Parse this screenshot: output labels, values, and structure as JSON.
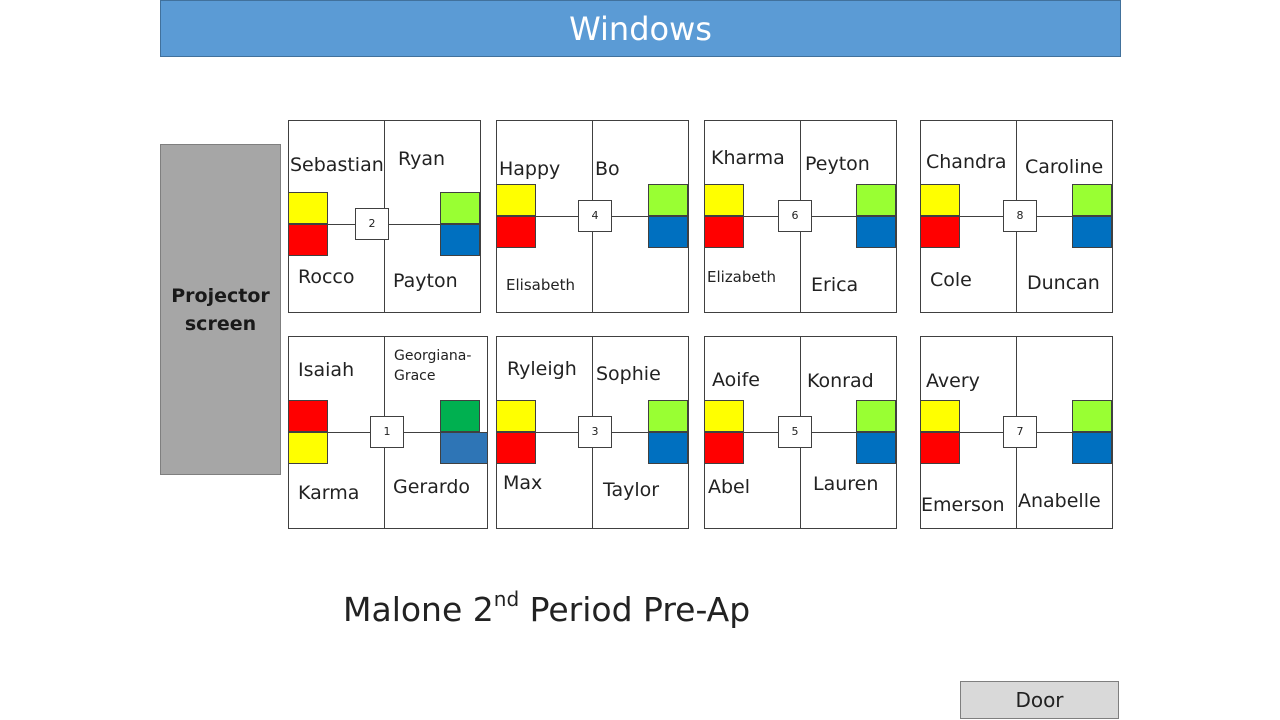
{
  "header": {
    "windows_label": "Windows"
  },
  "projector": {
    "line1": "Projector",
    "line2": "screen"
  },
  "title": {
    "prefix": "Malone 2",
    "superscript": "nd",
    "suffix": " Period Pre-Ap"
  },
  "door": {
    "label": "Door"
  },
  "colors": {
    "windows": "#5b9bd5",
    "projector": "#a6a6a6",
    "yellow": "#ffff00",
    "red": "#ff0000",
    "lime": "#99ff33",
    "blue": "#0070c0",
    "green": "#00b050",
    "steel_blue": "#2e75b6"
  },
  "tables": [
    {
      "number": "2",
      "names": [
        "Sebastian",
        "Ryan",
        "Rocco",
        "Payton"
      ],
      "squares": [
        "yellow",
        "red",
        "lime",
        "blue"
      ]
    },
    {
      "number": "4",
      "names": [
        "Happy",
        "Bo",
        "Elisabeth",
        ""
      ],
      "squares": [
        "yellow",
        "red",
        "lime",
        "blue"
      ]
    },
    {
      "number": "6",
      "names": [
        "Kharma",
        "Peyton",
        "Elizabeth",
        "Erica"
      ],
      "squares": [
        "yellow",
        "red",
        "lime",
        "blue"
      ]
    },
    {
      "number": "8",
      "names": [
        "Chandra",
        "Caroline",
        "Cole",
        "Duncan"
      ],
      "squares": [
        "yellow",
        "red",
        "lime",
        "blue"
      ]
    },
    {
      "number": "1",
      "names": [
        "Isaiah",
        "Georgiana-Grace",
        "Karma",
        "Gerardo"
      ],
      "squares": [
        "red",
        "yellow",
        "green",
        "steel_blue"
      ]
    },
    {
      "number": "3",
      "names": [
        "Ryleigh",
        "Sophie",
        "Max",
        "Taylor"
      ],
      "squares": [
        "yellow",
        "red",
        "lime",
        "blue"
      ]
    },
    {
      "number": "5",
      "names": [
        "Aoife",
        "Konrad",
        "Abel",
        "Lauren"
      ],
      "squares": [
        "yellow",
        "red",
        "lime",
        "blue"
      ]
    },
    {
      "number": "7",
      "names": [
        "Avery",
        "",
        "Emerson",
        "Anabelle"
      ],
      "squares": [
        "yellow",
        "red",
        "lime",
        "blue"
      ]
    }
  ]
}
